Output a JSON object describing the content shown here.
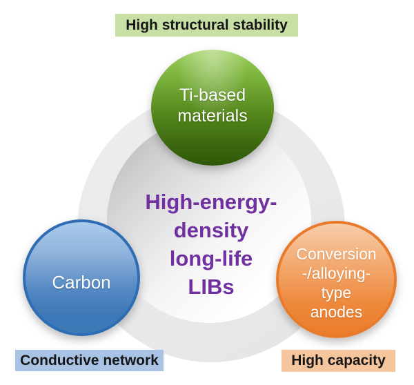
{
  "figure": {
    "center": {
      "line1": "High-energy-",
      "line2": "density",
      "line3": "long-life",
      "line4": "LIBs",
      "text_color": "#7030a0"
    },
    "nodes": {
      "top": {
        "line1": "Ti-based",
        "line2": "materials",
        "color": "#55871c",
        "tag": "High structural stability",
        "tag_bg": "#c8dfa6"
      },
      "left": {
        "line1": "Carbon",
        "color": "#3c77b7",
        "tag": "Conductive network",
        "tag_bg": "#a9c3e4"
      },
      "right": {
        "line1": "Conversion",
        "line2": "-/alloying-",
        "line3": "type",
        "line4": "anodes",
        "color": "#ea7c2a",
        "tag": "High capacity",
        "tag_bg": "#f5c69e"
      }
    },
    "ring_color": "#e9e9eb",
    "text_on_nodes_color": "#ffffff"
  }
}
